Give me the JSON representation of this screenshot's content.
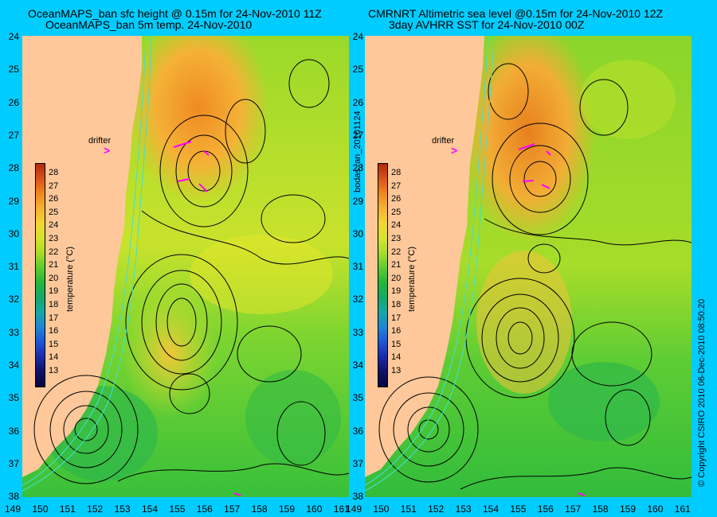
{
  "left_title_line1": "OceanMAPS_ban sfc height @ 0.15m for 24-Nov-2010 11Z",
  "left_title_line2": "OceanMAPS_ban 5m temp. 24-Nov-2010",
  "right_title_line1": "CMRNRT Altimetric sea level  @0.15m  for 24-Nov-2010 12Z",
  "right_title_line2": "3day AVHRR SST for 24-Nov-2010 00Z",
  "y_ticks": [
    "24",
    "25",
    "26",
    "27",
    "28",
    "29",
    "30",
    "31",
    "32",
    "33",
    "34",
    "35",
    "36",
    "37",
    "38"
  ],
  "x_ticks": [
    "149",
    "150",
    "151",
    "152",
    "153",
    "154",
    "155",
    "156",
    "157",
    "158",
    "159",
    "160",
    "161"
  ],
  "colorbar_ticks": [
    "28",
    "27",
    "26",
    "25",
    "24",
    "23",
    "22",
    "21",
    "20",
    "19",
    "18",
    "17",
    "16",
    "15",
    "14",
    "13"
  ],
  "colorbar_label": "temperature (°C)",
  "drifter_label": "drifter",
  "side_label": "bodas_an_20101124",
  "copyright": "© Copyright CSIRO 2010   06-Dec-2010 08:50:20",
  "colors": {
    "land": "#fec89a",
    "background": "#00ccff",
    "arrow": "#ff00ff",
    "contour": "#000000",
    "isobath": "#40e0d0"
  }
}
